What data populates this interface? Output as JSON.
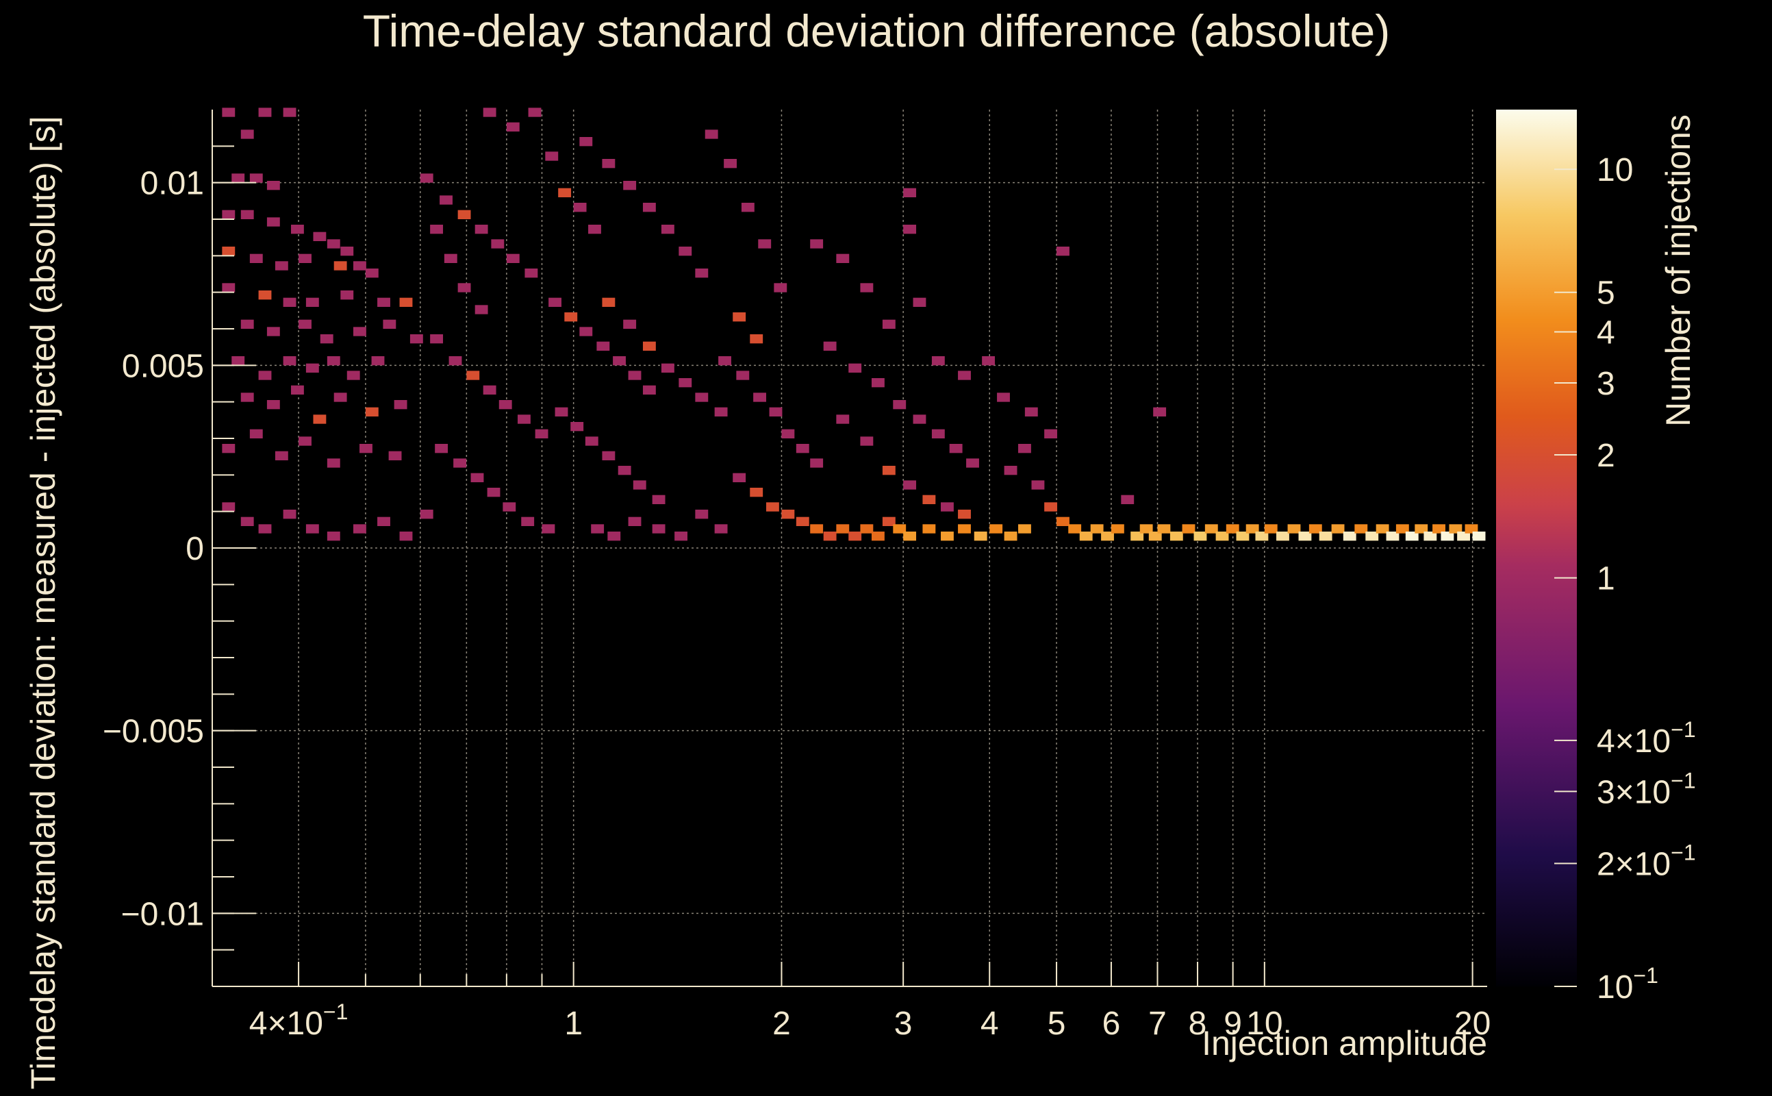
{
  "chart_data": {
    "type": "heatmap",
    "title": "Time-delay standard deviation difference (absolute)",
    "xlabel": "Injection amplitude",
    "ylabel": "Timedelay standard deviation: measured - injected (absolute) [s]",
    "zlabel": "Number of injections",
    "x_scale": "log",
    "z_scale": "log",
    "xlim": [
      0.3,
      21
    ],
    "ylim": [
      -0.012,
      0.012
    ],
    "zlim": [
      0.1,
      14
    ],
    "grid": true,
    "x_ticks": [
      {
        "value": 0.4,
        "label": "4×10",
        "exp": "−1"
      },
      {
        "value": 1,
        "label": "1"
      },
      {
        "value": 2,
        "label": "2"
      },
      {
        "value": 3,
        "label": "3"
      },
      {
        "value": 4,
        "label": "4"
      },
      {
        "value": 5,
        "label": "5"
      },
      {
        "value": 6,
        "label": "6"
      },
      {
        "value": 7,
        "label": "7"
      },
      {
        "value": 8,
        "label": "8"
      },
      {
        "value": 9,
        "label": "9"
      },
      {
        "value": 10,
        "label": "10"
      },
      {
        "value": 20,
        "label": "20"
      }
    ],
    "y_ticks": [
      {
        "value": 0.01,
        "label": "0.01"
      },
      {
        "value": 0.005,
        "label": "0.005"
      },
      {
        "value": 0,
        "label": "0"
      },
      {
        "value": -0.005,
        "label": "−0.005"
      },
      {
        "value": -0.01,
        "label": "−0.01"
      }
    ],
    "z_ticks": [
      {
        "value": 10,
        "label": "10"
      },
      {
        "value": 5,
        "label": "5"
      },
      {
        "value": 4,
        "label": "4"
      },
      {
        "value": 3,
        "label": "3"
      },
      {
        "value": 2,
        "label": "2"
      },
      {
        "value": 1,
        "label": "1"
      },
      {
        "value": 0.4,
        "label": "4×10",
        "exp": "−1"
      },
      {
        "value": 0.3,
        "label": "3×10",
        "exp": "−1"
      },
      {
        "value": 0.2,
        "label": "2×10",
        "exp": "−1"
      },
      {
        "value": 0.1,
        "label": "10",
        "exp": "−1"
      }
    ],
    "bin_size": {
      "x_log10": 0.0187,
      "y": 0.00025
    },
    "bins": [
      [
        0.31,
        0.0118,
        1
      ],
      [
        0.33,
        0.0112,
        1
      ],
      [
        0.35,
        0.0118,
        1
      ],
      [
        0.38,
        0.0118,
        1
      ],
      [
        0.32,
        0.01,
        1
      ],
      [
        0.34,
        0.01,
        1
      ],
      [
        0.36,
        0.0098,
        1
      ],
      [
        0.31,
        0.009,
        1
      ],
      [
        0.33,
        0.009,
        1
      ],
      [
        0.36,
        0.0088,
        1
      ],
      [
        0.39,
        0.0086,
        1
      ],
      [
        0.42,
        0.0084,
        1
      ],
      [
        0.44,
        0.0082,
        1
      ],
      [
        0.46,
        0.008,
        1
      ],
      [
        0.31,
        0.008,
        2
      ],
      [
        0.34,
        0.0078,
        1
      ],
      [
        0.37,
        0.0076,
        1
      ],
      [
        0.4,
        0.0078,
        1
      ],
      [
        0.45,
        0.0076,
        2
      ],
      [
        0.48,
        0.0076,
        1
      ],
      [
        0.5,
        0.0074,
        1
      ],
      [
        0.31,
        0.007,
        1
      ],
      [
        0.35,
        0.0068,
        2
      ],
      [
        0.38,
        0.0066,
        1
      ],
      [
        0.41,
        0.0066,
        1
      ],
      [
        0.46,
        0.0068,
        1
      ],
      [
        0.52,
        0.0066,
        1
      ],
      [
        0.56,
        0.0066,
        2
      ],
      [
        0.33,
        0.006,
        1
      ],
      [
        0.36,
        0.0058,
        1
      ],
      [
        0.4,
        0.006,
        1
      ],
      [
        0.43,
        0.0056,
        1
      ],
      [
        0.48,
        0.0058,
        1
      ],
      [
        0.53,
        0.006,
        1
      ],
      [
        0.58,
        0.0056,
        1
      ],
      [
        0.32,
        0.005,
        1
      ],
      [
        0.35,
        0.0046,
        1
      ],
      [
        0.38,
        0.005,
        1
      ],
      [
        0.41,
        0.0048,
        1
      ],
      [
        0.44,
        0.005,
        1
      ],
      [
        0.47,
        0.0046,
        1
      ],
      [
        0.51,
        0.005,
        1
      ],
      [
        0.33,
        0.004,
        1
      ],
      [
        0.36,
        0.0038,
        1
      ],
      [
        0.39,
        0.0042,
        1
      ],
      [
        0.42,
        0.0034,
        2
      ],
      [
        0.45,
        0.004,
        1
      ],
      [
        0.5,
        0.0036,
        2
      ],
      [
        0.55,
        0.0038,
        1
      ],
      [
        0.31,
        0.0026,
        1
      ],
      [
        0.34,
        0.003,
        1
      ],
      [
        0.37,
        0.0024,
        1
      ],
      [
        0.4,
        0.0028,
        1
      ],
      [
        0.44,
        0.0022,
        1
      ],
      [
        0.49,
        0.0026,
        1
      ],
      [
        0.54,
        0.0024,
        1
      ],
      [
        0.31,
        0.001,
        1
      ],
      [
        0.33,
        0.0006,
        1
      ],
      [
        0.35,
        0.0004,
        1
      ],
      [
        0.38,
        0.0008,
        1
      ],
      [
        0.41,
        0.0004,
        1
      ],
      [
        0.44,
        0.0002,
        1
      ],
      [
        0.48,
        0.0004,
        1
      ],
      [
        0.52,
        0.0006,
        1
      ],
      [
        0.56,
        0.0002,
        1
      ],
      [
        0.6,
        0.0008,
        1
      ],
      [
        0.62,
        0.0086,
        1
      ],
      [
        0.65,
        0.0078,
        1
      ],
      [
        0.68,
        0.007,
        1
      ],
      [
        0.72,
        0.0064,
        1
      ],
      [
        0.6,
        0.01,
        1
      ],
      [
        0.64,
        0.0094,
        1
      ],
      [
        0.68,
        0.009,
        2
      ],
      [
        0.72,
        0.0086,
        1
      ],
      [
        0.76,
        0.0082,
        1
      ],
      [
        0.8,
        0.0078,
        1
      ],
      [
        0.85,
        0.0074,
        1
      ],
      [
        0.62,
        0.0056,
        1
      ],
      [
        0.66,
        0.005,
        1
      ],
      [
        0.7,
        0.0046,
        2
      ],
      [
        0.74,
        0.0042,
        1
      ],
      [
        0.78,
        0.0038,
        1
      ],
      [
        0.83,
        0.0034,
        1
      ],
      [
        0.88,
        0.003,
        1
      ],
      [
        0.63,
        0.0026,
        1
      ],
      [
        0.67,
        0.0022,
        1
      ],
      [
        0.71,
        0.0018,
        1
      ],
      [
        0.75,
        0.0014,
        1
      ],
      [
        0.79,
        0.001,
        1
      ],
      [
        0.84,
        0.0006,
        1
      ],
      [
        0.9,
        0.0004,
        1
      ],
      [
        0.74,
        0.0118,
        1
      ],
      [
        0.8,
        0.0114,
        1
      ],
      [
        0.86,
        0.0118,
        1
      ],
      [
        0.91,
        0.0106,
        1
      ],
      [
        0.95,
        0.0096,
        2
      ],
      [
        1.0,
        0.0092,
        1
      ],
      [
        1.05,
        0.0086,
        1
      ],
      [
        0.92,
        0.0066,
        1
      ],
      [
        0.97,
        0.0062,
        2
      ],
      [
        1.02,
        0.0058,
        1
      ],
      [
        1.08,
        0.0054,
        1
      ],
      [
        1.14,
        0.005,
        1
      ],
      [
        1.2,
        0.0046,
        1
      ],
      [
        1.26,
        0.0042,
        1
      ],
      [
        0.94,
        0.0036,
        1
      ],
      [
        0.99,
        0.0032,
        1
      ],
      [
        1.04,
        0.0028,
        1
      ],
      [
        1.1,
        0.0024,
        1
      ],
      [
        1.16,
        0.002,
        1
      ],
      [
        1.22,
        0.0016,
        1
      ],
      [
        1.3,
        0.0012,
        1
      ],
      [
        1.02,
        0.011,
        1
      ],
      [
        1.1,
        0.0104,
        1
      ],
      [
        1.18,
        0.0098,
        1
      ],
      [
        1.26,
        0.0092,
        1
      ],
      [
        1.34,
        0.0086,
        1
      ],
      [
        1.42,
        0.008,
        1
      ],
      [
        1.5,
        0.0074,
        1
      ],
      [
        1.1,
        0.0066,
        2
      ],
      [
        1.18,
        0.006,
        1
      ],
      [
        1.26,
        0.0054,
        2
      ],
      [
        1.34,
        0.0048,
        1
      ],
      [
        1.42,
        0.0044,
        1
      ],
      [
        1.5,
        0.004,
        1
      ],
      [
        1.6,
        0.0036,
        1
      ],
      [
        1.06,
        0.0004,
        1
      ],
      [
        1.12,
        0.0002,
        1
      ],
      [
        1.2,
        0.0006,
        1
      ],
      [
        1.3,
        0.0004,
        1
      ],
      [
        1.4,
        0.0002,
        1
      ],
      [
        1.5,
        0.0008,
        1
      ],
      [
        1.6,
        0.0004,
        1
      ],
      [
        1.55,
        0.0112,
        1
      ],
      [
        1.65,
        0.0104,
        1
      ],
      [
        1.75,
        0.0092,
        1
      ],
      [
        1.85,
        0.0082,
        1
      ],
      [
        1.95,
        0.007,
        1
      ],
      [
        1.7,
        0.0062,
        2
      ],
      [
        1.8,
        0.0056,
        2
      ],
      [
        1.62,
        0.005,
        1
      ],
      [
        1.72,
        0.0046,
        1
      ],
      [
        1.82,
        0.004,
        1
      ],
      [
        1.92,
        0.0036,
        1
      ],
      [
        2.0,
        0.003,
        1
      ],
      [
        2.1,
        0.0026,
        1
      ],
      [
        2.2,
        0.0022,
        1
      ],
      [
        1.7,
        0.0018,
        1
      ],
      [
        1.8,
        0.0014,
        2
      ],
      [
        1.9,
        0.001,
        2
      ],
      [
        2.0,
        0.0008,
        2
      ],
      [
        2.1,
        0.0006,
        2
      ],
      [
        2.2,
        0.0004,
        3
      ],
      [
        2.3,
        0.0002,
        2
      ],
      [
        2.4,
        0.0004,
        3
      ],
      [
        2.5,
        0.0002,
        2
      ],
      [
        2.6,
        0.0004,
        3
      ],
      [
        2.7,
        0.0002,
        3
      ],
      [
        2.8,
        0.0006,
        2
      ],
      [
        2.9,
        0.0004,
        4
      ],
      [
        3.0,
        0.0002,
        5
      ],
      [
        2.2,
        0.0082,
        1
      ],
      [
        2.4,
        0.0078,
        1
      ],
      [
        2.6,
        0.007,
        1
      ],
      [
        2.8,
        0.006,
        1
      ],
      [
        3.0,
        0.0086,
        1
      ],
      [
        3.0,
        0.0096,
        1
      ],
      [
        2.3,
        0.0054,
        1
      ],
      [
        2.5,
        0.0048,
        1
      ],
      [
        2.7,
        0.0044,
        1
      ],
      [
        2.9,
        0.0038,
        1
      ],
      [
        3.1,
        0.0034,
        1
      ],
      [
        3.3,
        0.003,
        1
      ],
      [
        3.5,
        0.0026,
        1
      ],
      [
        3.7,
        0.0022,
        1
      ],
      [
        2.4,
        0.0034,
        1
      ],
      [
        2.6,
        0.0028,
        1
      ],
      [
        2.8,
        0.002,
        2
      ],
      [
        3.0,
        0.0016,
        1
      ],
      [
        3.2,
        0.0012,
        2
      ],
      [
        3.4,
        0.001,
        1
      ],
      [
        3.6,
        0.0008,
        2
      ],
      [
        3.2,
        0.0004,
        4
      ],
      [
        3.4,
        0.0002,
        5
      ],
      [
        3.6,
        0.0004,
        4
      ],
      [
        3.8,
        0.0002,
        6
      ],
      [
        4.0,
        0.0004,
        4
      ],
      [
        4.2,
        0.0002,
        5
      ],
      [
        4.4,
        0.0004,
        5
      ],
      [
        3.1,
        0.0066,
        1
      ],
      [
        3.3,
        0.005,
        1
      ],
      [
        3.6,
        0.0046,
        1
      ],
      [
        3.9,
        0.005,
        1
      ],
      [
        4.1,
        0.004,
        1
      ],
      [
        4.5,
        0.0036,
        1
      ],
      [
        4.8,
        0.003,
        1
      ],
      [
        4.2,
        0.002,
        1
      ],
      [
        4.4,
        0.0026,
        1
      ],
      [
        4.6,
        0.0016,
        1
      ],
      [
        4.8,
        0.001,
        2
      ],
      [
        5.0,
        0.0006,
        3
      ],
      [
        5.2,
        0.0004,
        4
      ],
      [
        5.4,
        0.0002,
        6
      ],
      [
        5.0,
        0.008,
        1
      ],
      [
        5.6,
        0.0004,
        5
      ],
      [
        5.8,
        0.0002,
        6
      ],
      [
        6.0,
        0.0004,
        4
      ],
      [
        6.2,
        0.0012,
        1
      ],
      [
        6.4,
        0.0002,
        7
      ],
      [
        6.6,
        0.0004,
        5
      ],
      [
        6.9,
        0.0036,
        1
      ],
      [
        6.8,
        0.0002,
        6
      ],
      [
        7.0,
        0.0004,
        5
      ],
      [
        7.3,
        0.0002,
        7
      ],
      [
        7.6,
        0.0004,
        4
      ],
      [
        7.9,
        0.0002,
        8
      ],
      [
        8.2,
        0.0004,
        5
      ],
      [
        8.5,
        0.0002,
        7
      ],
      [
        8.8,
        0.0004,
        4
      ],
      [
        9.1,
        0.0002,
        8
      ],
      [
        9.4,
        0.0004,
        5
      ],
      [
        9.7,
        0.0002,
        9
      ],
      [
        10.0,
        0.0004,
        4
      ],
      [
        10.4,
        0.0002,
        10
      ],
      [
        10.8,
        0.0004,
        5
      ],
      [
        11.2,
        0.0002,
        11
      ],
      [
        11.6,
        0.0004,
        4
      ],
      [
        12.0,
        0.0002,
        10
      ],
      [
        12.5,
        0.0004,
        5
      ],
      [
        13.0,
        0.0002,
        12
      ],
      [
        13.5,
        0.0004,
        4
      ],
      [
        14.0,
        0.0002,
        11
      ],
      [
        14.5,
        0.0004,
        5
      ],
      [
        15.0,
        0.0002,
        12
      ],
      [
        15.5,
        0.0004,
        4
      ],
      [
        16.0,
        0.0002,
        13
      ],
      [
        16.5,
        0.0004,
        5
      ],
      [
        17.0,
        0.0002,
        12
      ],
      [
        17.5,
        0.0004,
        4
      ],
      [
        18.0,
        0.0002,
        13
      ],
      [
        18.5,
        0.0004,
        5
      ],
      [
        19.0,
        0.0002,
        12
      ],
      [
        19.5,
        0.0004,
        4
      ],
      [
        20.0,
        0.0002,
        13
      ]
    ]
  }
}
